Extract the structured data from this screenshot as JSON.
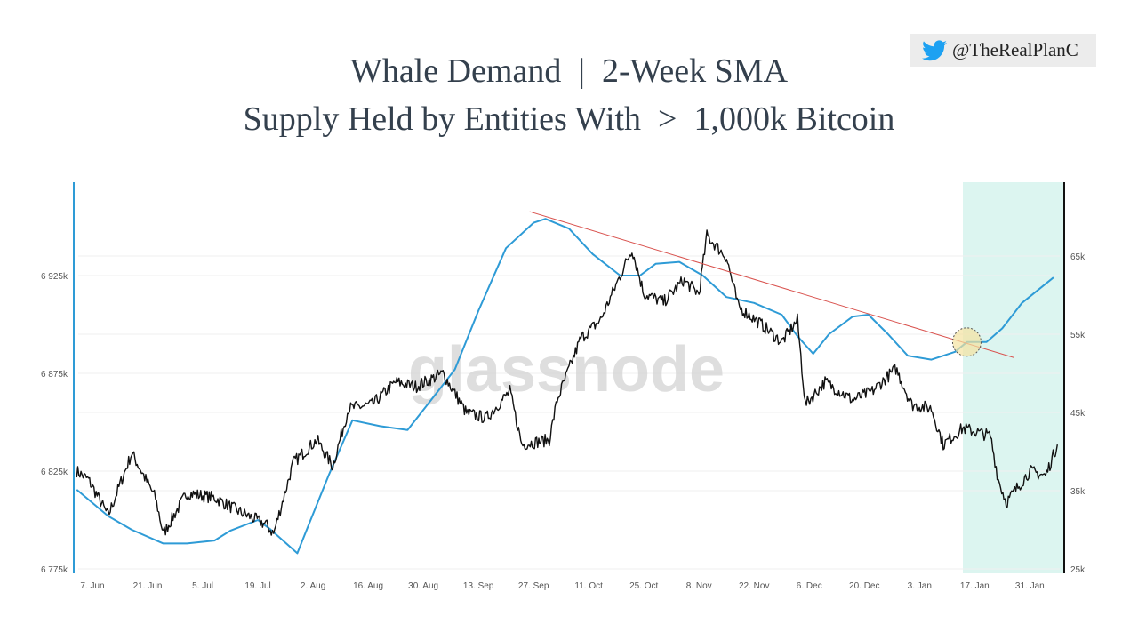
{
  "header": {
    "title_line1": "Whale Demand  |  2-Week SMA",
    "title_line2": "Supply Held by Entities With  >  1,000k Bitcoin",
    "handle": "@TheRealPlanC",
    "handle_icon": "twitter-bird-icon"
  },
  "watermark": "glassnode",
  "chart_data": {
    "type": "line",
    "title": "Whale Demand | 2-Week SMA — Supply Held by Entities With > 1,000k Bitcoin",
    "x_tick_labels": [
      "7. Jun",
      "21. Jun",
      "5. Jul",
      "19. Jul",
      "2. Aug",
      "16. Aug",
      "30. Aug",
      "13. Sep",
      "27. Sep",
      "11. Oct",
      "25. Oct",
      "8. Nov",
      "22. Nov",
      "6. Dec",
      "20. Dec",
      "3. Jan",
      "17. Jan",
      "31. Jan"
    ],
    "x_tick_dates": [
      "2021-06-07",
      "2021-06-21",
      "2021-07-05",
      "2021-07-19",
      "2021-08-02",
      "2021-08-16",
      "2021-08-30",
      "2021-09-13",
      "2021-09-27",
      "2021-10-11",
      "2021-10-25",
      "2021-11-08",
      "2021-11-22",
      "2021-12-06",
      "2021-12-20",
      "2022-01-03",
      "2022-01-17",
      "2022-01-31"
    ],
    "xlim": [
      "2021-06-03",
      "2022-02-08"
    ],
    "left_axis": {
      "ticks": [
        "6 775k",
        "6 825k",
        "6 875k",
        "6 925k"
      ],
      "tick_values": [
        6775,
        6825,
        6875,
        6925
      ],
      "range": [
        6775,
        6975
      ],
      "unit": "k BTC",
      "color": "#2e9bd6"
    },
    "right_axis": {
      "ticks": [
        "25k",
        "35k",
        "45k",
        "55k",
        "65k"
      ],
      "tick_values": [
        25,
        35,
        45,
        55,
        65
      ],
      "range": [
        25,
        74
      ],
      "unit": "k USD",
      "color": "#111111"
    },
    "grid": true,
    "series": [
      {
        "axis": "left",
        "color": "#2e9bd6",
        "points": [
          [
            "2021-06-03",
            6815.5
          ],
          [
            "2021-06-11",
            6802
          ],
          [
            "2021-06-17",
            6795
          ],
          [
            "2021-06-25",
            6788
          ],
          [
            "2021-07-01",
            6788
          ],
          [
            "2021-07-08",
            6789.5
          ],
          [
            "2021-07-12",
            6794.5
          ],
          [
            "2021-07-19",
            6800
          ],
          [
            "2021-07-22",
            6795.5
          ],
          [
            "2021-07-29",
            6783
          ],
          [
            "2021-08-01",
            6798
          ],
          [
            "2021-08-06",
            6823
          ],
          [
            "2021-08-12",
            6851
          ],
          [
            "2021-08-19",
            6848
          ],
          [
            "2021-08-26",
            6846
          ],
          [
            "2021-09-02",
            6864
          ],
          [
            "2021-09-07",
            6877
          ],
          [
            "2021-09-13",
            6907
          ],
          [
            "2021-09-20",
            6939
          ],
          [
            "2021-09-27",
            6952
          ],
          [
            "2021-09-30",
            6954
          ],
          [
            "2021-10-06",
            6949
          ],
          [
            "2021-10-12",
            6936
          ],
          [
            "2021-10-19",
            6925
          ],
          [
            "2021-10-24",
            6925
          ],
          [
            "2021-10-28",
            6931
          ],
          [
            "2021-11-03",
            6932
          ],
          [
            "2021-11-09",
            6925
          ],
          [
            "2021-11-15",
            6914
          ],
          [
            "2021-11-22",
            6911
          ],
          [
            "2021-11-29",
            6905
          ],
          [
            "2021-12-03",
            6894
          ],
          [
            "2021-12-07",
            6885
          ],
          [
            "2021-12-11",
            6895
          ],
          [
            "2021-12-17",
            6904
          ],
          [
            "2021-12-21",
            6905
          ],
          [
            "2021-12-26",
            6895
          ],
          [
            "2021-12-31",
            6884
          ],
          [
            "2022-01-06",
            6882
          ],
          [
            "2022-01-12",
            6886
          ],
          [
            "2022-01-15",
            6891
          ],
          [
            "2022-01-20",
            6891
          ],
          [
            "2022-01-24",
            6898
          ],
          [
            "2022-01-29",
            6911
          ],
          [
            "2022-02-06",
            6924
          ]
        ]
      },
      {
        "axis": "right",
        "color": "#111111",
        "points": [
          [
            "2021-06-03",
            37.5
          ],
          [
            "2021-06-06",
            36.4
          ],
          [
            "2021-06-11",
            31.8
          ],
          [
            "2021-06-17",
            39.8
          ],
          [
            "2021-06-23",
            34.1
          ],
          [
            "2021-06-25",
            29.5
          ],
          [
            "2021-07-01",
            34.7
          ],
          [
            "2021-07-08",
            34.1
          ],
          [
            "2021-07-14",
            32.4
          ],
          [
            "2021-07-21",
            30.7
          ],
          [
            "2021-07-23",
            29.5
          ],
          [
            "2021-07-28",
            38.6
          ],
          [
            "2021-08-03",
            41.5
          ],
          [
            "2021-08-07",
            38.1
          ],
          [
            "2021-08-11",
            45.5
          ],
          [
            "2021-08-17",
            46
          ],
          [
            "2021-08-23",
            48.9
          ],
          [
            "2021-08-28",
            48.3
          ],
          [
            "2021-09-04",
            50
          ],
          [
            "2021-09-10",
            44.9
          ],
          [
            "2021-09-15",
            44.3
          ],
          [
            "2021-09-21",
            47.7
          ],
          [
            "2021-09-24",
            40.9
          ],
          [
            "2021-10-01",
            41.5
          ],
          [
            "2021-10-03",
            46.6
          ],
          [
            "2021-10-09",
            54.5
          ],
          [
            "2021-10-14",
            56.8
          ],
          [
            "2021-10-19",
            62.5
          ],
          [
            "2021-10-22",
            65.9
          ],
          [
            "2021-10-25",
            60.2
          ],
          [
            "2021-10-30",
            59.1
          ],
          [
            "2021-11-04",
            61.9
          ],
          [
            "2021-11-08",
            60.2
          ],
          [
            "2021-11-10",
            67.6
          ],
          [
            "2021-11-15",
            64.8
          ],
          [
            "2021-11-18",
            58.5
          ],
          [
            "2021-11-24",
            56.2
          ],
          [
            "2021-11-29",
            54
          ],
          [
            "2021-12-03",
            56.8
          ],
          [
            "2021-12-05",
            46
          ],
          [
            "2021-12-10",
            48.9
          ],
          [
            "2021-12-17",
            46.6
          ],
          [
            "2021-12-22",
            47.7
          ],
          [
            "2021-12-28",
            50.6
          ],
          [
            "2022-01-01",
            46
          ],
          [
            "2022-01-06",
            45.5
          ],
          [
            "2022-01-09",
            40.9
          ],
          [
            "2022-01-14",
            43
          ],
          [
            "2022-01-21",
            42
          ],
          [
            "2022-01-23",
            36.4
          ],
          [
            "2022-01-25",
            33.5
          ],
          [
            "2022-01-31",
            37.5
          ],
          [
            "2022-02-04",
            36.9
          ],
          [
            "2022-02-07",
            40.9
          ]
        ]
      }
    ],
    "annotations": {
      "trendline": {
        "color": "#d9534f",
        "axis": "left",
        "from": [
          "2021-09-26",
          6957.7
        ],
        "to": [
          "2022-01-27",
          6883
        ]
      },
      "highlight_circle": {
        "color": "#f3e3a0",
        "axis": "left",
        "at": [
          "2022-01-15",
          6891
        ]
      },
      "shaded_region": {
        "color": "#dcf5f0",
        "from": "2022-01-14",
        "to": "2022-02-08"
      }
    }
  }
}
